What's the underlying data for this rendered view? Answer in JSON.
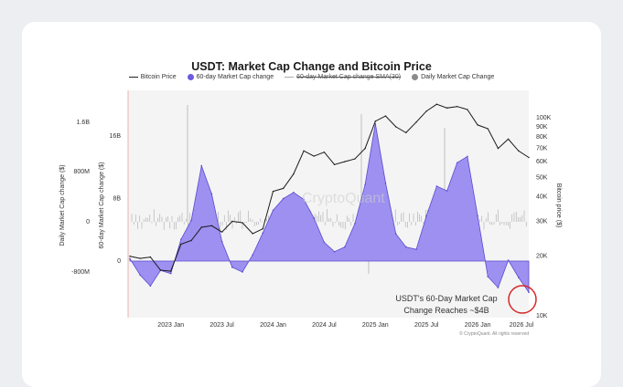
{
  "card": {
    "background": "#ffffff",
    "page_background": "#eceef1"
  },
  "chart_data": {
    "type": "area",
    "title": "USDT: Market Cap Change and Bitcoin Price",
    "legend": [
      {
        "label": "Bitcoin Price",
        "kind": "line",
        "color": "#1a1a1a"
      },
      {
        "label": "60-day Market Cap change",
        "kind": "dot",
        "color": "#6b5be0"
      },
      {
        "label": "60-day Market Cap change SMA(30)",
        "kind": "line-strike",
        "color": "#aaaaaa"
      },
      {
        "label": "Daily Market Cap Change",
        "kind": "dot",
        "color": "#8a8a8a"
      }
    ],
    "legend_position": "top-center",
    "x_tick_labels": [
      "2023 Jan",
      "2023 Jul",
      "2024 Jan",
      "2024 Jul",
      "2025 Jan",
      "2025 Jul",
      "2026 Jan",
      "2026 Jul"
    ],
    "left_axis_label": "Daily Market Cap change ($)",
    "left_axis_ticks": [
      "1.6B",
      "800M",
      "0",
      "-800M"
    ],
    "mid_axis_label": "60-day Market Cap change ($)",
    "mid_axis_ticks": [
      "16B",
      "8B",
      "0"
    ],
    "right_axis_label": "Bitcoin price ($)",
    "right_axis_ticks": [
      "100K",
      "90K",
      "80K",
      "70K",
      "60K",
      "50K",
      "40K",
      "30K",
      "20K",
      "10K"
    ],
    "right_axis_scale": "log",
    "grid": false,
    "series": [
      {
        "name": "60-day Market Cap change",
        "color": "#6b5be0",
        "x": [
          2022.6,
          2022.7,
          2022.8,
          2022.9,
          2023.0,
          2023.1,
          2023.2,
          2023.3,
          2023.4,
          2023.5,
          2023.6,
          2023.7,
          2023.8,
          2023.9,
          2024.0,
          2024.1,
          2024.2,
          2024.3,
          2024.4,
          2024.5,
          2024.6,
          2024.7,
          2024.8,
          2024.9,
          2025.0,
          2025.1,
          2025.2,
          2025.3,
          2025.4,
          2025.5,
          2025.6,
          2025.7,
          2025.8,
          2025.9,
          2026.0,
          2026.1,
          2026.2,
          2026.3,
          2026.4,
          2026.5
        ],
        "values": [
          0.3,
          -1.8,
          -3.2,
          -1.2,
          -1.6,
          2.8,
          5.2,
          12.2,
          8.6,
          2.5,
          -0.8,
          -1.4,
          0.8,
          3.6,
          6.5,
          8.0,
          8.8,
          7.9,
          5.5,
          2.4,
          1.2,
          1.8,
          4.8,
          9.8,
          17.6,
          10.0,
          3.5,
          1.8,
          1.5,
          5.8,
          9.6,
          9.0,
          12.6,
          13.4,
          5.8,
          -2.0,
          -3.4,
          0.1,
          -2.1,
          -4.0
        ]
      },
      {
        "name": "Bitcoin Price",
        "color": "#1a1a1a",
        "x": [
          2022.6,
          2022.7,
          2022.8,
          2022.9,
          2023.0,
          2023.1,
          2023.2,
          2023.3,
          2023.4,
          2023.5,
          2023.6,
          2023.7,
          2023.8,
          2023.9,
          2024.0,
          2024.1,
          2024.2,
          2024.3,
          2024.4,
          2024.5,
          2024.6,
          2024.7,
          2024.8,
          2024.9,
          2025.0,
          2025.1,
          2025.2,
          2025.3,
          2025.4,
          2025.5,
          2025.6,
          2025.7,
          2025.8,
          2025.9,
          2026.0,
          2026.1,
          2026.2,
          2026.3,
          2026.4,
          2026.5
        ],
        "values": [
          20000,
          19500,
          19800,
          17000,
          16800,
          23000,
          24000,
          28000,
          28500,
          26500,
          30000,
          29500,
          26000,
          27500,
          42500,
          44000,
          52000,
          68000,
          64000,
          67000,
          58000,
          60000,
          62000,
          70000,
          96000,
          102000,
          90000,
          84000,
          95000,
          108000,
          117000,
          112000,
          114000,
          110000,
          92000,
          88000,
          70000,
          78000,
          68000,
          63000
        ]
      }
    ],
    "annotation": {
      "text_line1": "USDT's 60-Day Market Cap",
      "text_line2": "Change Reaches ~$4B"
    },
    "watermark": "CryptoQuant",
    "credit": "© CryptoQuant. All rights reserved"
  }
}
